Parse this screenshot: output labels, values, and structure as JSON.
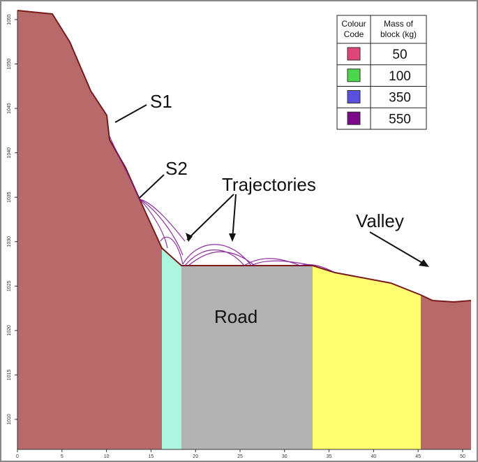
{
  "annotations": {
    "s1": "S1",
    "s2": "S2",
    "trajectories": "Trajectories",
    "valley": "Valley",
    "road": "Road"
  },
  "legend": {
    "code_header": [
      "Colour",
      "Code"
    ],
    "mass_header": [
      "Mass of",
      "block (kg)"
    ],
    "rows": [
      {
        "color": "#e0457a",
        "mass": 50
      },
      {
        "color": "#4cd64c",
        "mass": 100
      },
      {
        "color": "#5a4fe0",
        "mass": 350
      },
      {
        "color": "#7a0a8a",
        "mass": 550
      }
    ]
  },
  "axes": {
    "xticks": [
      0,
      5,
      10,
      15,
      20,
      25,
      30,
      35,
      40,
      45,
      50
    ],
    "yticks": [
      1010,
      1015,
      1020,
      1025,
      1030,
      1035,
      1040,
      1045,
      1050,
      1055
    ]
  }
}
